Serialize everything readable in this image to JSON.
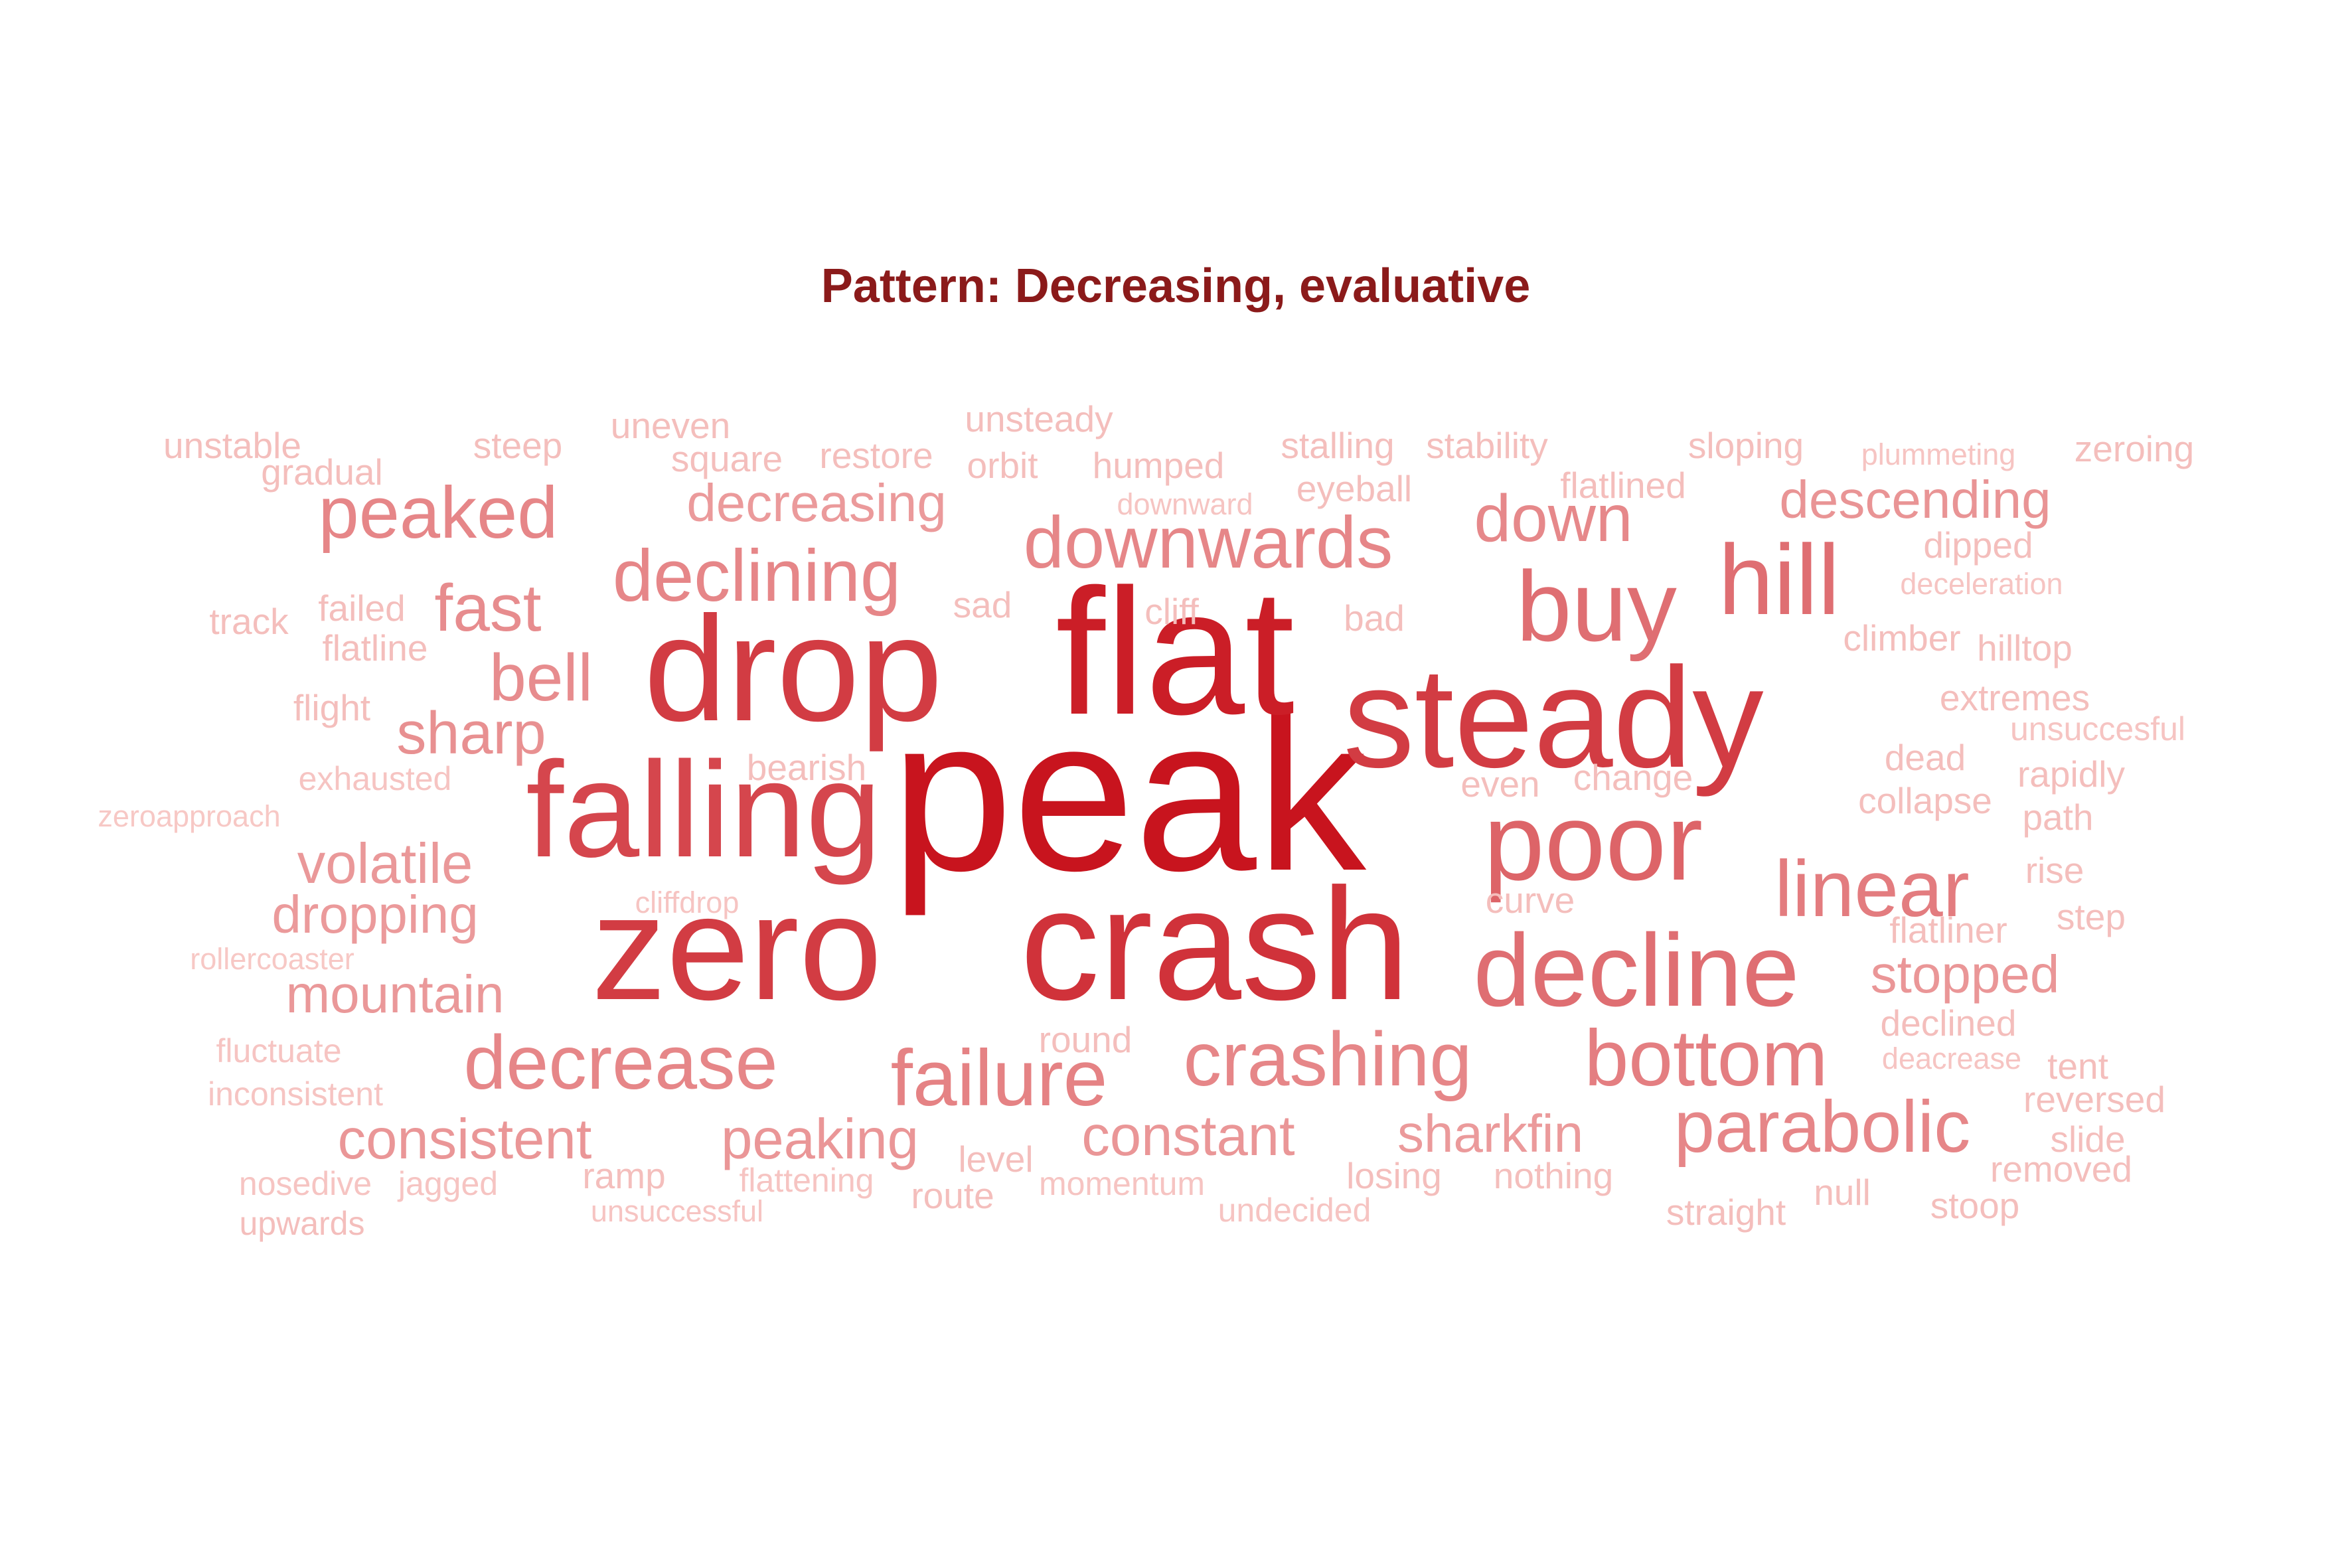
{
  "title": "Pattern: Decreasing, evaluative",
  "title_color": "#8b1a1a",
  "color_scale": [
    "#fcdcd8",
    "#c8141e"
  ],
  "words": [
    {
      "text": "peak",
      "weight": 1.0
    },
    {
      "text": "flat",
      "weight": 0.95
    },
    {
      "text": "crash",
      "weight": 0.85
    },
    {
      "text": "drop",
      "weight": 0.8
    },
    {
      "text": "zero",
      "weight": 0.8
    },
    {
      "text": "steady",
      "weight": 0.8
    },
    {
      "text": "falling",
      "weight": 0.75
    },
    {
      "text": "poor",
      "weight": 0.6
    },
    {
      "text": "decline",
      "weight": 0.55
    },
    {
      "text": "buy",
      "weight": 0.55
    },
    {
      "text": "hill",
      "weight": 0.55
    },
    {
      "text": "linear",
      "weight": 0.48
    },
    {
      "text": "bottom",
      "weight": 0.47
    },
    {
      "text": "failure",
      "weight": 0.45
    },
    {
      "text": "parabolic",
      "weight": 0.43
    },
    {
      "text": "downwards",
      "weight": 0.43
    },
    {
      "text": "declining",
      "weight": 0.43
    },
    {
      "text": "peaked",
      "weight": 0.43
    },
    {
      "text": "decrease",
      "weight": 0.43
    },
    {
      "text": "crashing",
      "weight": 0.43
    },
    {
      "text": "down",
      "weight": 0.42
    },
    {
      "text": "bell",
      "weight": 0.4
    },
    {
      "text": "fast",
      "weight": 0.4
    },
    {
      "text": "sharp",
      "weight": 0.38
    },
    {
      "text": "descending",
      "weight": 0.36
    },
    {
      "text": "stopped",
      "weight": 0.35
    },
    {
      "text": "constant",
      "weight": 0.35
    },
    {
      "text": "consistent",
      "weight": 0.35
    },
    {
      "text": "peaking",
      "weight": 0.35
    },
    {
      "text": "mountain",
      "weight": 0.34
    },
    {
      "text": "volatile",
      "weight": 0.34
    },
    {
      "text": "decreasing",
      "weight": 0.33
    },
    {
      "text": "sharkfin",
      "weight": 0.33
    },
    {
      "text": "dropping",
      "weight": 0.33
    },
    {
      "text": "unstable",
      "weight": 0.15
    },
    {
      "text": "gradual",
      "weight": 0.15
    },
    {
      "text": "steep",
      "weight": 0.15
    },
    {
      "text": "uneven",
      "weight": 0.15
    },
    {
      "text": "square",
      "weight": 0.15
    },
    {
      "text": "restore",
      "weight": 0.15
    },
    {
      "text": "unsteady",
      "weight": 0.15
    },
    {
      "text": "orbit",
      "weight": 0.15
    },
    {
      "text": "humped",
      "weight": 0.15
    },
    {
      "text": "downward",
      "weight": 0.12
    },
    {
      "text": "stalling",
      "weight": 0.15
    },
    {
      "text": "stability",
      "weight": 0.15
    },
    {
      "text": "eyeball",
      "weight": 0.15
    },
    {
      "text": "flatlined",
      "weight": 0.15
    },
    {
      "text": "sloping",
      "weight": 0.15
    },
    {
      "text": "plummeting",
      "weight": 0.12
    },
    {
      "text": "zeroing",
      "weight": 0.15
    },
    {
      "text": "dipped",
      "weight": 0.15
    },
    {
      "text": "deceleration",
      "weight": 0.12
    },
    {
      "text": "track",
      "weight": 0.15
    },
    {
      "text": "failed",
      "weight": 0.15
    },
    {
      "text": "flatline",
      "weight": 0.15
    },
    {
      "text": "sad",
      "weight": 0.15
    },
    {
      "text": "cliff",
      "weight": 0.15
    },
    {
      "text": "bad",
      "weight": 0.15
    },
    {
      "text": "climber",
      "weight": 0.15
    },
    {
      "text": "hilltop",
      "weight": 0.15
    },
    {
      "text": "flight",
      "weight": 0.15
    },
    {
      "text": "extremes",
      "weight": 0.15
    },
    {
      "text": "unsuccesful",
      "weight": 0.12
    },
    {
      "text": "exhausted",
      "weight": 0.12
    },
    {
      "text": "bearish",
      "weight": 0.15
    },
    {
      "text": "even",
      "weight": 0.15
    },
    {
      "text": "change",
      "weight": 0.15
    },
    {
      "text": "dead",
      "weight": 0.15
    },
    {
      "text": "rapidly",
      "weight": 0.15
    },
    {
      "text": "zeroapproach",
      "weight": 0.1
    },
    {
      "text": "collapse",
      "weight": 0.15
    },
    {
      "text": "path",
      "weight": 0.15
    },
    {
      "text": "cliffdrop",
      "weight": 0.12
    },
    {
      "text": "curve",
      "weight": 0.15
    },
    {
      "text": "rise",
      "weight": 0.15
    },
    {
      "text": "step",
      "weight": 0.15
    },
    {
      "text": "rollercoaster",
      "weight": 0.1
    },
    {
      "text": "flatliner",
      "weight": 0.15
    },
    {
      "text": "fluctuate",
      "weight": 0.12
    },
    {
      "text": "round",
      "weight": 0.15
    },
    {
      "text": "declined",
      "weight": 0.15
    },
    {
      "text": "deacrease",
      "weight": 0.12
    },
    {
      "text": "tent",
      "weight": 0.15
    },
    {
      "text": "inconsistent",
      "weight": 0.12
    },
    {
      "text": "reversed",
      "weight": 0.15
    },
    {
      "text": "level",
      "weight": 0.15
    },
    {
      "text": "slide",
      "weight": 0.15
    },
    {
      "text": "nosedive",
      "weight": 0.12
    },
    {
      "text": "jagged",
      "weight": 0.12
    },
    {
      "text": "ramp",
      "weight": 0.15
    },
    {
      "text": "flattening",
      "weight": 0.12
    },
    {
      "text": "momentum",
      "weight": 0.12
    },
    {
      "text": "losing",
      "weight": 0.15
    },
    {
      "text": "nothing",
      "weight": 0.15
    },
    {
      "text": "null",
      "weight": 0.15
    },
    {
      "text": "removed",
      "weight": 0.15
    },
    {
      "text": "route",
      "weight": 0.15
    },
    {
      "text": "undecided",
      "weight": 0.12
    },
    {
      "text": "straight",
      "weight": 0.15
    },
    {
      "text": "stoop",
      "weight": 0.15
    },
    {
      "text": "upwards",
      "weight": 0.15
    },
    {
      "text": "unsuccessful",
      "weight": 0.12
    }
  ]
}
